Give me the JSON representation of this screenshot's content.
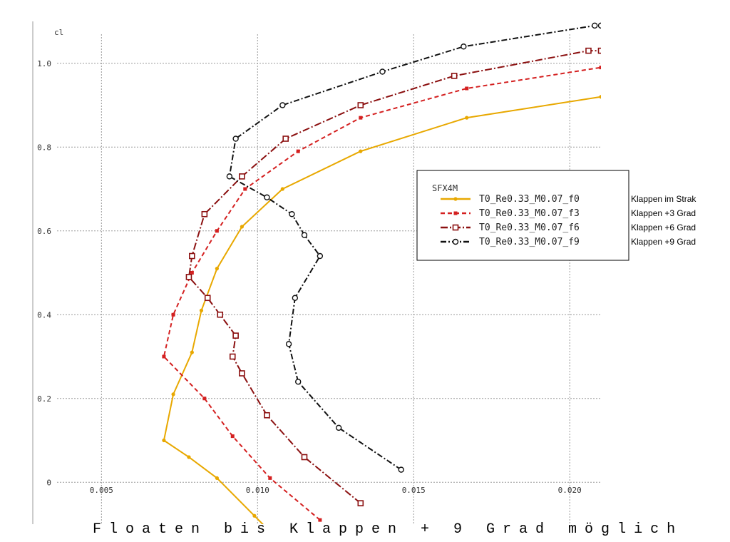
{
  "chart_data": {
    "type": "line",
    "xlabel": "",
    "ylabel": "cl",
    "xlim": [
      0.0028,
      0.021
    ],
    "ylim": [
      -0.1,
      1.1
    ],
    "x_ticks": [
      "0.005",
      "0.010",
      "0.015",
      "0.020"
    ],
    "y_ticks": [
      "0",
      "0.2",
      "0.4",
      "0.6",
      "0.8",
      "1.0"
    ],
    "x_tick_values": [
      0.005,
      0.01,
      0.015,
      0.02
    ],
    "y_tick_values": [
      0,
      0.2,
      0.4,
      0.6,
      0.8,
      1.0
    ],
    "grid": true,
    "legend_title": "SFX4M",
    "legend_position": "right",
    "caption": "Floaten bis Klappen + 9 Grad möglich",
    "series": [
      {
        "name": "T0_Re0.33_M0.07_f0",
        "note": "Klappen im Strak",
        "color": "#e8a800",
        "dash": "solid",
        "marker": "dot",
        "x": [
          0.0103,
          0.0099,
          0.0087,
          0.0078,
          0.007,
          0.0073,
          0.0079,
          0.0082,
          0.0087,
          0.0095,
          0.0108,
          0.0133,
          0.0167,
          0.021
        ],
        "y": [
          -0.11,
          -0.08,
          0.01,
          0.06,
          0.1,
          0.21,
          0.31,
          0.41,
          0.51,
          0.61,
          0.7,
          0.79,
          0.87,
          0.92
        ]
      },
      {
        "name": "T0_Re0.33_M0.07_f3",
        "note": "Klappen +3 Grad",
        "color": "#d42020",
        "dash": "6,4",
        "marker": "small-square",
        "x": [
          0.012,
          0.0104,
          0.0092,
          0.0083,
          0.007,
          0.0073,
          0.0079,
          0.0087,
          0.0096,
          0.0113,
          0.0133,
          0.0167,
          0.021
        ],
        "y": [
          -0.09,
          0.01,
          0.11,
          0.2,
          0.3,
          0.4,
          0.5,
          0.6,
          0.7,
          0.79,
          0.87,
          0.94,
          0.99
        ]
      },
      {
        "name": "T0_Re0.33_M0.07_f6",
        "note": "Klappen +6 Grad",
        "color": "#8b1010",
        "dash": "10,3,2,3",
        "marker": "square",
        "x": [
          0.0133,
          0.0115,
          0.0103,
          0.0095,
          0.0092,
          0.0093,
          0.0088,
          0.0084,
          0.0078,
          0.0079,
          0.0083,
          0.0095,
          0.0109,
          0.0133,
          0.0163,
          0.0206,
          0.021
        ],
        "y": [
          -0.05,
          0.06,
          0.16,
          0.26,
          0.3,
          0.35,
          0.4,
          0.44,
          0.49,
          0.54,
          0.64,
          0.73,
          0.82,
          0.9,
          0.97,
          1.03,
          1.03
        ]
      },
      {
        "name": "T0_Re0.33_M0.07_f9",
        "note": "Klappen +9 Grad",
        "color": "#111111",
        "dash": "8,3,2,3",
        "marker": "circle",
        "x": [
          0.0146,
          0.0126,
          0.0113,
          0.011,
          0.0112,
          0.012,
          0.0115,
          0.0111,
          0.0103,
          0.0091,
          0.0093,
          0.0108,
          0.014,
          0.0166,
          0.0208,
          0.021
        ],
        "y": [
          0.03,
          0.13,
          0.24,
          0.33,
          0.44,
          0.54,
          0.59,
          0.64,
          0.68,
          0.73,
          0.82,
          0.9,
          0.98,
          1.04,
          1.09,
          1.09
        ]
      }
    ]
  }
}
